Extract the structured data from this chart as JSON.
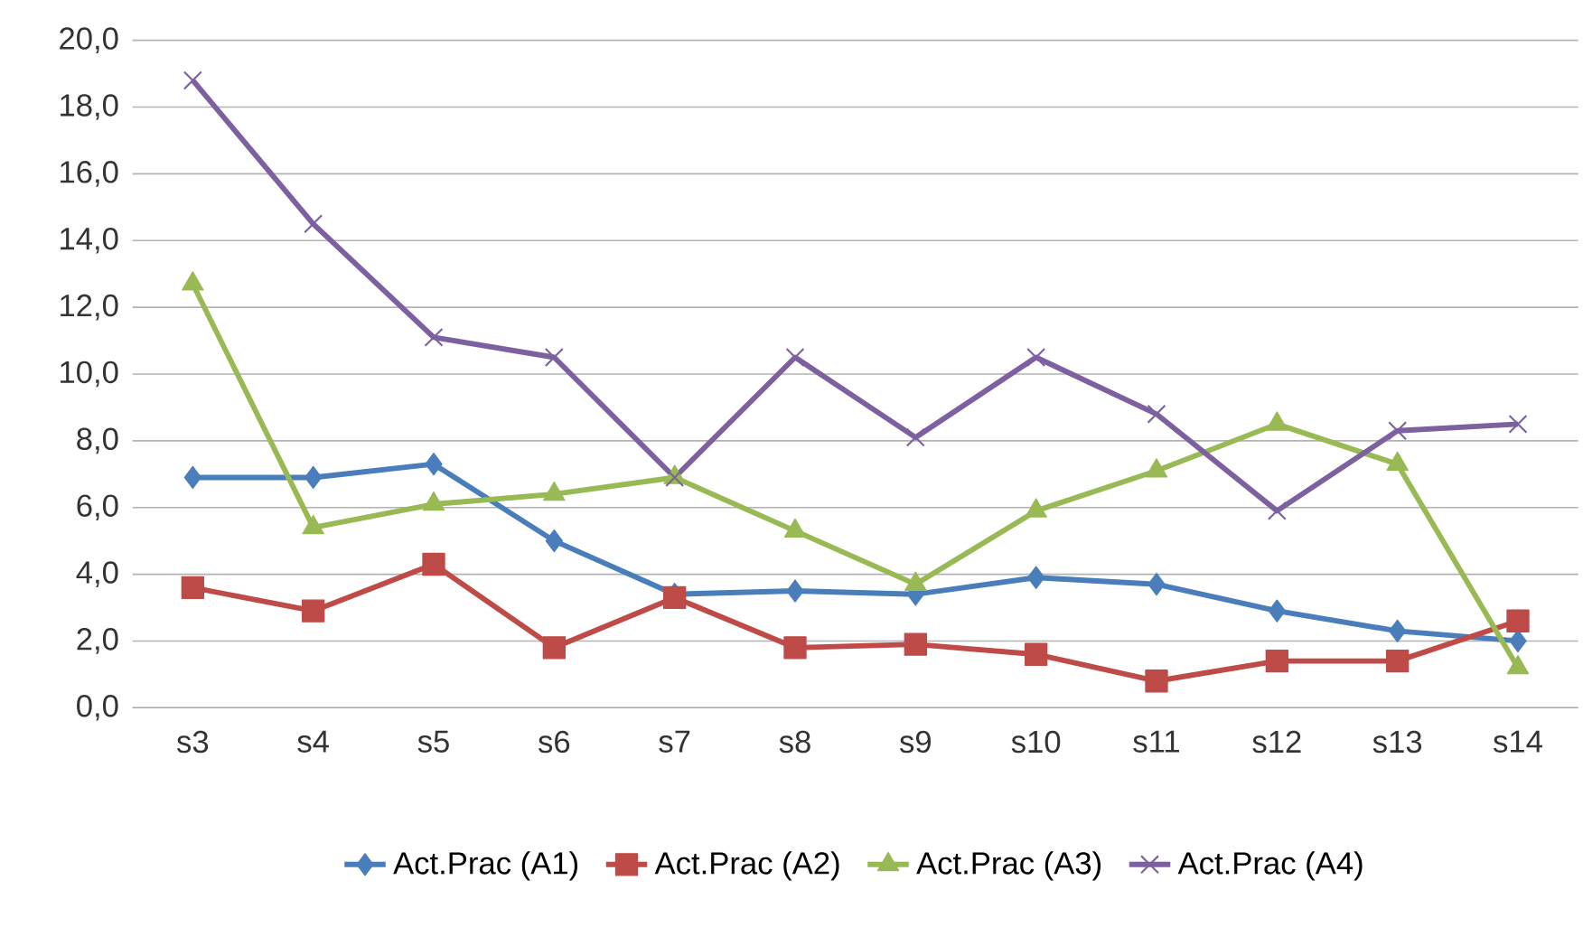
{
  "chart_data": {
    "type": "line",
    "categories": [
      "s3",
      "s4",
      "s5",
      "s6",
      "s7",
      "s8",
      "s9",
      "s10",
      "s11",
      "s12",
      "s13",
      "s14"
    ],
    "series": [
      {
        "name": "Act.Prac (A1)",
        "color": "#4a7ebb",
        "marker": "diamond",
        "values": [
          6.9,
          6.9,
          7.3,
          5.0,
          3.4,
          3.5,
          3.4,
          3.9,
          3.7,
          2.9,
          2.3,
          2.0
        ]
      },
      {
        "name": "Act.Prac (A2)",
        "color": "#be4b48",
        "marker": "square",
        "values": [
          3.6,
          2.9,
          4.3,
          1.8,
          3.3,
          1.8,
          1.9,
          1.6,
          0.8,
          1.4,
          1.4,
          2.6
        ]
      },
      {
        "name": "Act.Prac (A3)",
        "color": "#98b954",
        "marker": "triangle",
        "values": [
          12.7,
          5.4,
          6.1,
          6.4,
          6.9,
          5.3,
          3.7,
          5.9,
          7.1,
          8.5,
          7.3,
          1.2
        ]
      },
      {
        "name": "Act.Prac (A4)",
        "color": "#7d60a0",
        "marker": "cross",
        "values": [
          18.8,
          14.5,
          11.1,
          10.5,
          6.9,
          10.5,
          8.1,
          10.5,
          8.8,
          5.9,
          8.3,
          8.5
        ]
      }
    ],
    "ylim": [
      0,
      20
    ],
    "yticks": [
      {
        "value": 0,
        "label": "0,0"
      },
      {
        "value": 2,
        "label": "2,0"
      },
      {
        "value": 4,
        "label": "4,0"
      },
      {
        "value": 6,
        "label": "6,0"
      },
      {
        "value": 8,
        "label": "8,0"
      },
      {
        "value": 10,
        "label": "10,0"
      },
      {
        "value": 12,
        "label": "12,0"
      },
      {
        "value": 14,
        "label": "14,0"
      },
      {
        "value": 16,
        "label": "16,0"
      },
      {
        "value": 18,
        "label": "18,0"
      },
      {
        "value": 20,
        "label": "20,0"
      }
    ],
    "grid": "y",
    "legend": "bottom",
    "line_style": "solid"
  }
}
